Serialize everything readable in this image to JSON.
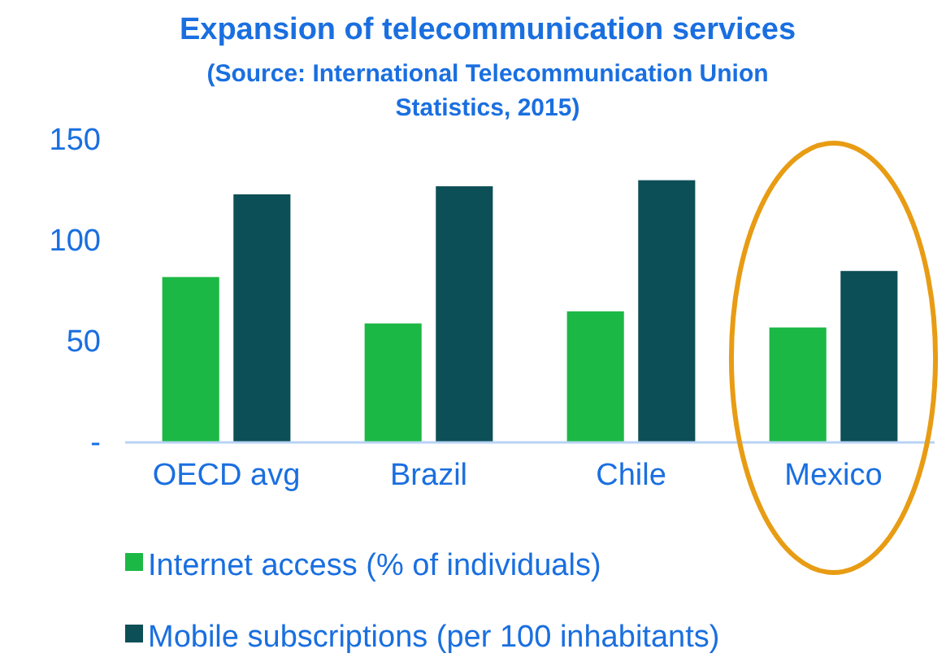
{
  "chart_data": {
    "type": "bar",
    "title": "Expansion of telecommunication services",
    "subtitle": "(Source: International Telecommunication Union Statistics, 2015)",
    "categories": [
      "OECD avg",
      "Brazil",
      "Chile",
      "Mexico"
    ],
    "series": [
      {
        "name": "Internet access (% of individuals)",
        "color": "#1cb845",
        "values": [
          82,
          59,
          65,
          57
        ]
      },
      {
        "name": "Mobile subscriptions (per 100 inhabitants)",
        "color": "#0d4f57",
        "values": [
          123,
          127,
          130,
          85
        ]
      }
    ],
    "ylim": [
      0,
      150
    ],
    "yticks": [
      {
        "value": 0,
        "label": "-"
      },
      50,
      100,
      150
    ],
    "grid": false,
    "legend": "bottom"
  }
}
